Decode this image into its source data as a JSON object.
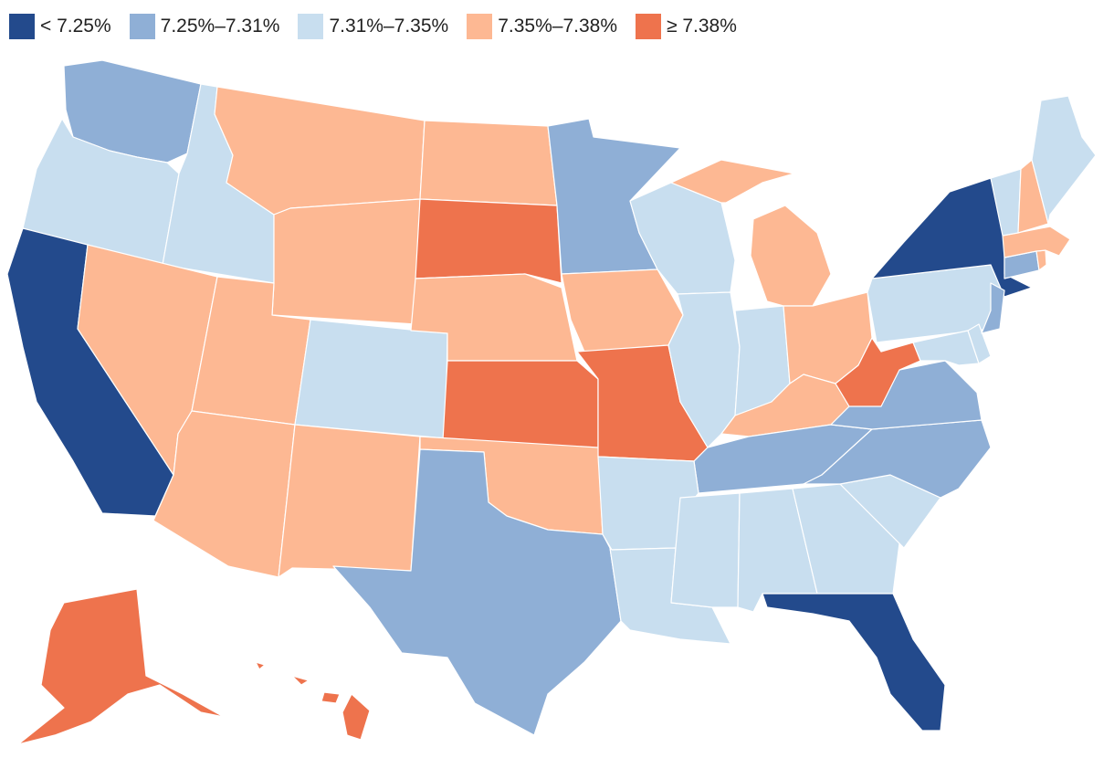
{
  "legend": [
    {
      "label": "< 7.25%",
      "color": "#234a8c"
    },
    {
      "label": "7.25%–7.31%",
      "color": "#8fafd6"
    },
    {
      "label": "7.31%–7.35%",
      "color": "#c8deef"
    },
    {
      "label": "7.35%–7.38%",
      "color": "#fdb893"
    },
    {
      "label": "≥ 7.38%",
      "color": "#ee734d"
    }
  ],
  "map_data": {
    "type": "choropleth",
    "region": "United States",
    "legend_placement": "top-left",
    "states": [
      {
        "state": "CA",
        "bin": 0
      },
      {
        "state": "NY",
        "bin": 0
      },
      {
        "state": "FL",
        "bin": 0
      },
      {
        "state": "WA",
        "bin": 1
      },
      {
        "state": "MN",
        "bin": 1
      },
      {
        "state": "TX",
        "bin": 1
      },
      {
        "state": "VA",
        "bin": 1
      },
      {
        "state": "NC",
        "bin": 1
      },
      {
        "state": "TN",
        "bin": 1
      },
      {
        "state": "NJ",
        "bin": 1
      },
      {
        "state": "CT",
        "bin": 1
      },
      {
        "state": "OR",
        "bin": 2
      },
      {
        "state": "ID",
        "bin": 2
      },
      {
        "state": "CO",
        "bin": 2
      },
      {
        "state": "WI",
        "bin": 2
      },
      {
        "state": "IL",
        "bin": 2
      },
      {
        "state": "IN",
        "bin": 2
      },
      {
        "state": "AR",
        "bin": 2
      },
      {
        "state": "LA",
        "bin": 2
      },
      {
        "state": "MS",
        "bin": 2
      },
      {
        "state": "AL",
        "bin": 2
      },
      {
        "state": "GA",
        "bin": 2
      },
      {
        "state": "SC",
        "bin": 2
      },
      {
        "state": "PA",
        "bin": 2
      },
      {
        "state": "ME",
        "bin": 2
      },
      {
        "state": "VT",
        "bin": 2
      },
      {
        "state": "MD",
        "bin": 2
      },
      {
        "state": "DE",
        "bin": 2
      },
      {
        "state": "MT",
        "bin": 3
      },
      {
        "state": "WY",
        "bin": 3
      },
      {
        "state": "NV",
        "bin": 3
      },
      {
        "state": "UT",
        "bin": 3
      },
      {
        "state": "AZ",
        "bin": 3
      },
      {
        "state": "NM",
        "bin": 3
      },
      {
        "state": "ND",
        "bin": 3
      },
      {
        "state": "NE",
        "bin": 3
      },
      {
        "state": "OK",
        "bin": 3
      },
      {
        "state": "IA",
        "bin": 3
      },
      {
        "state": "MI",
        "bin": 3
      },
      {
        "state": "OH",
        "bin": 3
      },
      {
        "state": "KY",
        "bin": 3
      },
      {
        "state": "NH",
        "bin": 3
      },
      {
        "state": "MA",
        "bin": 3
      },
      {
        "state": "RI",
        "bin": 3
      },
      {
        "state": "SD",
        "bin": 4
      },
      {
        "state": "KS",
        "bin": 4
      },
      {
        "state": "MO",
        "bin": 4
      },
      {
        "state": "WV",
        "bin": 4
      },
      {
        "state": "AK",
        "bin": 4
      },
      {
        "state": "HI",
        "bin": 4
      }
    ]
  }
}
